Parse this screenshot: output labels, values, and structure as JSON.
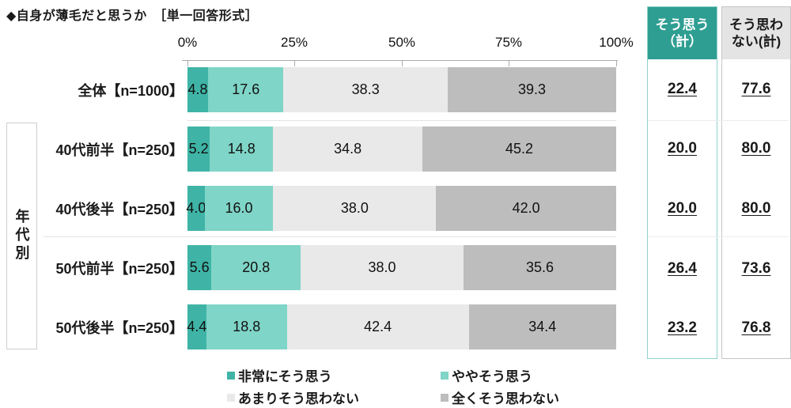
{
  "title": "◆自身が薄毛だと思うか　［単一回答形式］",
  "chart_data": {
    "type": "bar",
    "stacked": true,
    "orientation": "horizontal",
    "title": "◆自身が薄毛だと思うか ［単一回答形式］",
    "categories": [
      "全体【n=1000】",
      "40代前半【n=250】",
      "40代後半【n=250】",
      "50代前半【n=250】",
      "50代後半【n=250】"
    ],
    "series": [
      {
        "name": "非常にそう思う",
        "color": "#3fb4a6",
        "values": [
          4.8,
          5.2,
          4.0,
          5.6,
          4.4
        ]
      },
      {
        "name": "ややそう思う",
        "color": "#7fd5c7",
        "values": [
          17.6,
          14.8,
          16.0,
          20.8,
          18.8
        ]
      },
      {
        "name": "あまりそう思わない",
        "color": "#e9e9e9",
        "values": [
          38.3,
          34.8,
          38.0,
          38.0,
          42.4
        ]
      },
      {
        "name": "全くそう思わない",
        "color": "#bdbdbd",
        "values": [
          39.3,
          45.2,
          42.0,
          35.6,
          34.4
        ]
      }
    ],
    "x_axis": {
      "ticks": [
        "0%",
        "25%",
        "50%",
        "75%",
        "100%"
      ],
      "range": [
        0,
        100
      ]
    },
    "group_label": "年代別",
    "legend_position": "bottom",
    "summary_columns": [
      {
        "header": "そう思う（計）",
        "values": [
          22.4,
          20.0,
          20.0,
          26.4,
          23.2
        ]
      },
      {
        "header": "そう思わない(計)",
        "values": [
          77.6,
          80.0,
          80.0,
          73.6,
          76.8
        ]
      }
    ]
  },
  "rows": [
    {
      "label": "全体【n=1000】",
      "segments": [
        "4.8",
        "17.6",
        "38.3",
        "39.3"
      ],
      "agree": "22.4",
      "disagree": "77.6"
    },
    {
      "label": "40代前半【n=250】",
      "segments": [
        "5.2",
        "14.8",
        "34.8",
        "45.2"
      ],
      "agree": "20.0",
      "disagree": "80.0"
    },
    {
      "label": "40代後半【n=250】",
      "segments": [
        "4.0",
        "16.0",
        "38.0",
        "42.0"
      ],
      "agree": "20.0",
      "disagree": "80.0"
    },
    {
      "label": "50代前半【n=250】",
      "segments": [
        "5.6",
        "20.8",
        "38.0",
        "35.6"
      ],
      "agree": "26.4",
      "disagree": "73.6"
    },
    {
      "label": "50代後半【n=250】",
      "segments": [
        "4.4",
        "18.8",
        "42.4",
        "34.4"
      ],
      "agree": "23.2",
      "disagree": "76.8"
    }
  ],
  "summary": {
    "agree": {
      "line1": "そう思う",
      "line2": "（計）",
      "header_bg": "#2f9e92",
      "header_text": "#ffffff",
      "border": "#8fd1c9"
    },
    "disagree": {
      "line1": "そう思わ",
      "line2": "ない(計)",
      "header_bg": "#e4e4e4",
      "header_text": "#1a1a1a",
      "border": "#c6c6c6"
    }
  }
}
